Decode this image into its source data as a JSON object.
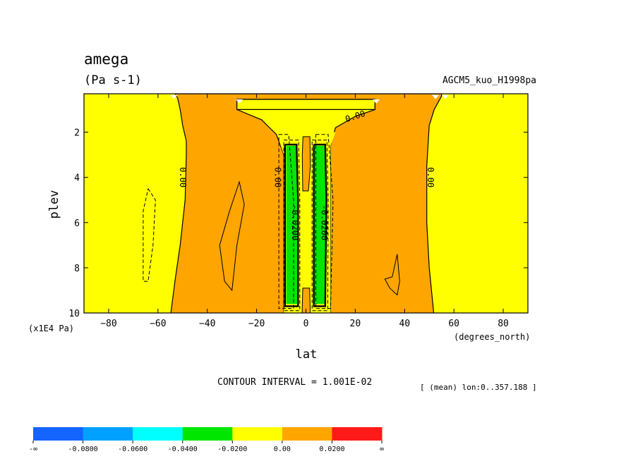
{
  "chart_data": {
    "type": "heatmap",
    "title": "amega",
    "subtitle": "(Pa s-1)",
    "dataset_label": "AGCM5_kuo_H1998pa",
    "xlabel": "lat",
    "x_unit_label": "(degrees_north)",
    "ylabel": "plev",
    "y_unit_label": "(x1E4 Pa)",
    "xlim": [
      -90,
      90
    ],
    "ylim": [
      10,
      0.3
    ],
    "x_ticks": [
      -80,
      -60,
      -40,
      -20,
      0,
      20,
      40,
      60,
      80
    ],
    "y_ticks": [
      2,
      4,
      6,
      8,
      10
    ],
    "contour_interval_text": "CONTOUR INTERVAL = 1.001E-02",
    "mean_info_text": "[ (mean) lon:0..357.188 ]",
    "contour_labels": [
      "0.00",
      "0.00",
      "0.00",
      "0.00",
      "-0.0200",
      "-0.0200"
    ],
    "regions": [
      {
        "label": "0.00 to 0.0200",
        "lat": [
          -52,
          -8
        ],
        "plev": [
          0.3,
          10
        ]
      },
      {
        "label": "0.00 to 0.0200",
        "lat": [
          8,
          52
        ],
        "plev": [
          0.3,
          10
        ]
      },
      {
        "label": "-0.0200 to 0.00",
        "lat": [
          -28,
          28
        ],
        "plev": [
          0.3,
          1.0
        ]
      },
      {
        "label": "-0.0400 to -0.0200",
        "lat": [
          -8,
          -3
        ],
        "plev": [
          2.6,
          9.6
        ]
      },
      {
        "label": "-0.0400 to -0.0200",
        "lat": [
          3,
          8
        ],
        "plev": [
          2.6,
          9.6
        ]
      }
    ],
    "colorbar": {
      "colors": [
        "#1464ff",
        "#00a0ff",
        "#00ffff",
        "#00e600",
        "#ffff00",
        "#ffa500",
        "#ff1a1a"
      ],
      "labels": [
        "-∞",
        "-0.0800",
        "-0.0600",
        "-0.0400",
        "-0.0200",
        "0.00",
        "0.0200",
        "∞"
      ]
    }
  }
}
